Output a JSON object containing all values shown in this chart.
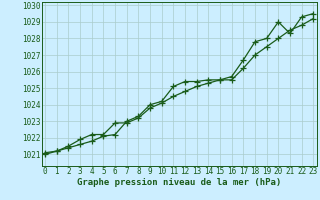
{
  "xlabel": "Graphe pression niveau de la mer (hPa)",
  "bg_color": "#cceeff",
  "grid_color": "#aacccc",
  "line_color": "#1a5c1a",
  "xlim": [
    -0.3,
    23.3
  ],
  "ylim": [
    1020.3,
    1030.2
  ],
  "yticks": [
    1021,
    1022,
    1023,
    1024,
    1025,
    1026,
    1027,
    1028,
    1029,
    1030
  ],
  "xticks": [
    0,
    1,
    2,
    3,
    4,
    5,
    6,
    7,
    8,
    9,
    10,
    11,
    12,
    13,
    14,
    15,
    16,
    17,
    18,
    19,
    20,
    21,
    22,
    23
  ],
  "series1": [
    1021.1,
    1021.2,
    1021.4,
    1021.6,
    1021.8,
    1022.1,
    1022.2,
    1023.0,
    1023.3,
    1024.0,
    1024.2,
    1025.1,
    1025.4,
    1025.4,
    1025.5,
    1025.5,
    1025.7,
    1026.7,
    1027.8,
    1028.0,
    1029.0,
    1028.3,
    1029.3,
    1029.5
  ],
  "series2": [
    1021.0,
    1021.2,
    1021.5,
    1021.9,
    1022.2,
    1022.2,
    1022.9,
    1022.9,
    1023.2,
    1023.8,
    1024.1,
    1024.5,
    1024.8,
    1025.1,
    1025.3,
    1025.5,
    1025.5,
    1026.2,
    1027.0,
    1027.5,
    1028.0,
    1028.5,
    1028.8,
    1029.2
  ],
  "tick_fontsize": 5.5,
  "xlabel_fontsize": 6.5,
  "linewidth": 0.9,
  "markersize": 4,
  "markeredgewidth": 0.9
}
